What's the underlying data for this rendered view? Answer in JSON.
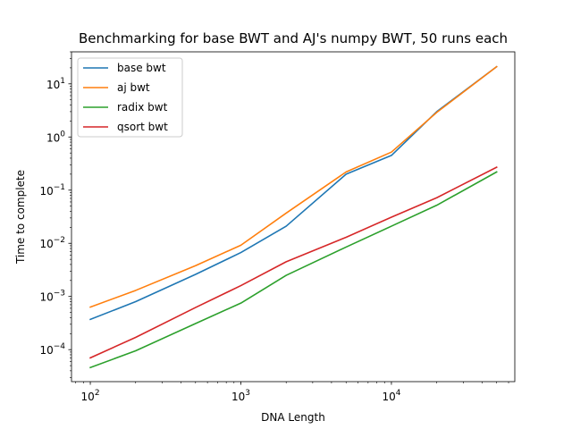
{
  "chart_data": {
    "type": "line",
    "title": "Benchmarking for base BWT and AJ's numpy BWT, 50 runs each",
    "xlabel": "DNA Length",
    "ylabel": "Time to complete",
    "xscale": "log",
    "yscale": "log",
    "xlim": [
      75,
      66000
    ],
    "ylim": [
      2.5e-05,
      40
    ],
    "grid": false,
    "legend_position": "top-left",
    "x": [
      100,
      200,
      500,
      1000,
      2000,
      5000,
      10000,
      20000,
      50000
    ],
    "xticks": [
      {
        "value": 100,
        "base": "10",
        "exp": "2"
      },
      {
        "value": 1000,
        "base": "10",
        "exp": "3"
      },
      {
        "value": 10000,
        "base": "10",
        "exp": "4"
      }
    ],
    "yticks": [
      {
        "value": 0.0001,
        "base": "10",
        "exp": "−4"
      },
      {
        "value": 0.001,
        "base": "10",
        "exp": "−3"
      },
      {
        "value": 0.01,
        "base": "10",
        "exp": "−2"
      },
      {
        "value": 0.1,
        "base": "10",
        "exp": "−1"
      },
      {
        "value": 1,
        "base": "10",
        "exp": "0"
      },
      {
        "value": 10,
        "base": "10",
        "exp": "1"
      }
    ],
    "series": [
      {
        "name": "base bwt",
        "color": "#1f77b4",
        "values": [
          0.00037,
          0.0008,
          0.0026,
          0.0067,
          0.021,
          0.2,
          0.45,
          3.0,
          21
        ]
      },
      {
        "name": "aj bwt",
        "color": "#ff7f0e",
        "values": [
          0.00063,
          0.0013,
          0.0038,
          0.0092,
          0.037,
          0.22,
          0.52,
          2.9,
          21
        ]
      },
      {
        "name": "radix bwt",
        "color": "#2ca02c",
        "values": [
          4.6e-05,
          9.5e-05,
          0.00031,
          0.00075,
          0.0025,
          0.0085,
          0.021,
          0.052,
          0.22
        ]
      },
      {
        "name": "qsort bwt",
        "color": "#d62728",
        "values": [
          7e-05,
          0.00017,
          0.00062,
          0.0016,
          0.0045,
          0.013,
          0.031,
          0.072,
          0.27
        ]
      }
    ]
  }
}
